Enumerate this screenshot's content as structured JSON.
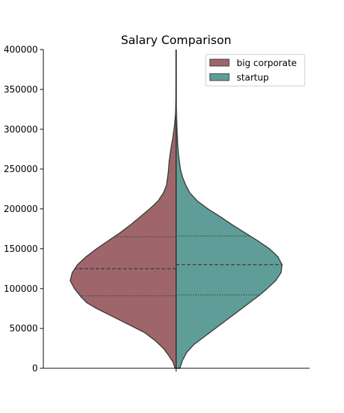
{
  "chart_data": {
    "type": "violin",
    "title": "Salary Comparison",
    "xlabel": "",
    "ylabel": "",
    "ylim": [
      0,
      400000
    ],
    "y_ticks": [
      0,
      50000,
      100000,
      150000,
      200000,
      250000,
      300000,
      350000,
      400000
    ],
    "y_tick_labels": [
      "0",
      "50000",
      "100000",
      "150000",
      "200000",
      "250000",
      "300000",
      "350000",
      "400000"
    ],
    "split": true,
    "legend_position": "top-right",
    "series": [
      {
        "name": "big corporate",
        "color": "#9e666a",
        "side": "left",
        "quartiles": [
          91000,
          125000,
          165000
        ],
        "profile": [
          [
            0,
            0.01
          ],
          [
            8000,
            0.03
          ],
          [
            16000,
            0.07
          ],
          [
            25000,
            0.12
          ],
          [
            35000,
            0.2
          ],
          [
            45000,
            0.3
          ],
          [
            55000,
            0.45
          ],
          [
            65000,
            0.6
          ],
          [
            75000,
            0.75
          ],
          [
            82000,
            0.84
          ],
          [
            90000,
            0.9
          ],
          [
            100000,
            0.96
          ],
          [
            110000,
            1.0
          ],
          [
            120000,
            0.98
          ],
          [
            130000,
            0.93
          ],
          [
            140000,
            0.85
          ],
          [
            150000,
            0.75
          ],
          [
            160000,
            0.64
          ],
          [
            170000,
            0.53
          ],
          [
            180000,
            0.43
          ],
          [
            190000,
            0.34
          ],
          [
            200000,
            0.25
          ],
          [
            210000,
            0.17
          ],
          [
            220000,
            0.12
          ],
          [
            230000,
            0.09
          ],
          [
            245000,
            0.075
          ],
          [
            260000,
            0.065
          ],
          [
            275000,
            0.05
          ],
          [
            290000,
            0.03
          ],
          [
            305000,
            0.015
          ],
          [
            320000,
            0.005
          ],
          [
            340000,
            0.002
          ],
          [
            360000,
            0.0015
          ],
          [
            400000,
            0.0
          ]
        ]
      },
      {
        "name": "startup",
        "color": "#5f9e98",
        "side": "right",
        "quartiles": [
          92000,
          130000,
          166000
        ],
        "profile": [
          [
            0,
            0.035
          ],
          [
            10000,
            0.06
          ],
          [
            20000,
            0.1
          ],
          [
            30000,
            0.17
          ],
          [
            40000,
            0.27
          ],
          [
            50000,
            0.37
          ],
          [
            60000,
            0.47
          ],
          [
            70000,
            0.57
          ],
          [
            80000,
            0.67
          ],
          [
            90000,
            0.77
          ],
          [
            100000,
            0.86
          ],
          [
            110000,
            0.94
          ],
          [
            120000,
            0.99
          ],
          [
            130000,
            1.0
          ],
          [
            140000,
            0.96
          ],
          [
            150000,
            0.88
          ],
          [
            160000,
            0.77
          ],
          [
            170000,
            0.65
          ],
          [
            180000,
            0.53
          ],
          [
            190000,
            0.42
          ],
          [
            200000,
            0.3
          ],
          [
            210000,
            0.2
          ],
          [
            220000,
            0.13
          ],
          [
            230000,
            0.09
          ],
          [
            240000,
            0.06
          ],
          [
            250000,
            0.04
          ],
          [
            265000,
            0.025
          ],
          [
            280000,
            0.015
          ],
          [
            300000,
            0.008
          ],
          [
            315000,
            0.004
          ],
          [
            330000,
            0.002
          ],
          [
            360000,
            0.001
          ],
          [
            400000,
            0.0
          ]
        ]
      }
    ]
  }
}
